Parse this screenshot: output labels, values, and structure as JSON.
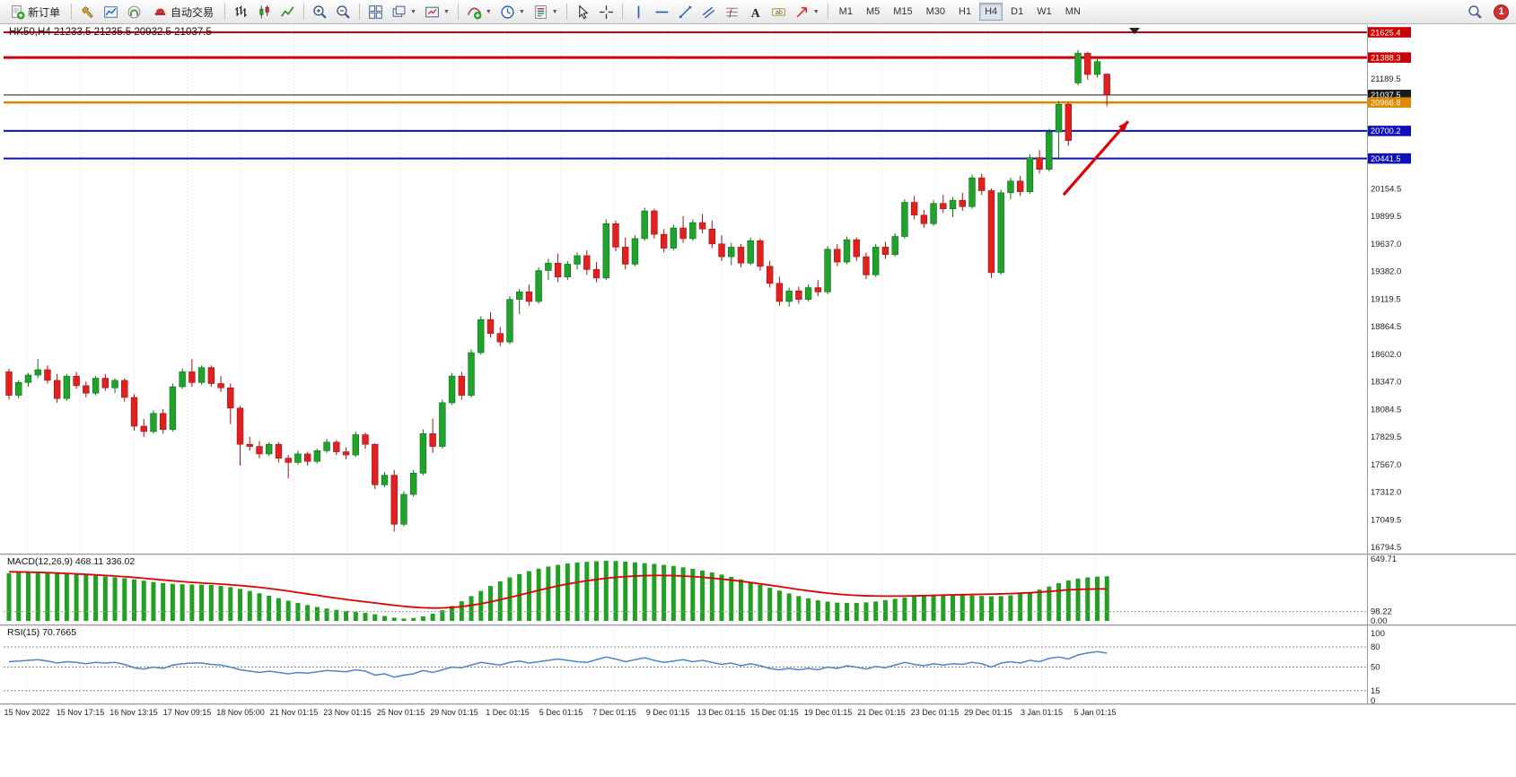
{
  "toolbar": {
    "buttons": [
      {
        "name": "new-order-button",
        "type": "labeled",
        "icon": "doc-plus",
        "label": "新订单"
      },
      {
        "type": "sep"
      },
      {
        "name": "hammer-tool-button",
        "type": "icon",
        "icon": "hammer"
      },
      {
        "name": "charts-window-button",
        "type": "icon",
        "icon": "chart-window"
      },
      {
        "name": "headphones-button",
        "type": "icon",
        "icon": "headphones"
      },
      {
        "name": "auto-trading-button",
        "type": "labeled",
        "icon": "autotrade",
        "label": "自动交易"
      },
      {
        "type": "sep"
      },
      {
        "name": "bar-chart-button",
        "type": "icon",
        "icon": "bar-chart"
      },
      {
        "name": "candle-chart-button",
        "type": "icon",
        "icon": "candle-chart"
      },
      {
        "name": "line-chart-button",
        "type": "icon",
        "icon": "line-chart"
      },
      {
        "type": "sep"
      },
      {
        "name": "zoom-in-button",
        "type": "icon",
        "icon": "zoom-in"
      },
      {
        "name": "zoom-out-button",
        "type": "icon",
        "icon": "zoom-out"
      },
      {
        "type": "sep"
      },
      {
        "name": "tile-windows-button",
        "type": "icon",
        "icon": "tile-windows"
      },
      {
        "name": "cascade-windows-button",
        "type": "icon",
        "icon": "cascade",
        "dropdown": true
      },
      {
        "name": "track-chart-button",
        "type": "icon",
        "icon": "track",
        "dropdown": true
      },
      {
        "type": "sep"
      },
      {
        "name": "indicators-button",
        "type": "icon",
        "icon": "indicator-plus",
        "dropdown": true
      },
      {
        "name": "periods-button",
        "type": "icon",
        "icon": "clock",
        "dropdown": true
      },
      {
        "name": "templates-button",
        "type": "icon",
        "icon": "template",
        "dropdown": true
      },
      {
        "type": "sep"
      },
      {
        "name": "cursor-button",
        "type": "icon",
        "icon": "cursor"
      },
      {
        "name": "crosshair-button",
        "type": "icon",
        "icon": "crosshair"
      },
      {
        "type": "sep"
      },
      {
        "name": "vertical-line-button",
        "type": "icon",
        "icon": "vline"
      },
      {
        "name": "horizontal-line-button",
        "type": "icon",
        "icon": "hline"
      },
      {
        "name": "trendline-button",
        "type": "icon",
        "icon": "trendline"
      },
      {
        "name": "channel-button",
        "type": "icon",
        "icon": "channel"
      },
      {
        "name": "fibonacci-button",
        "type": "icon",
        "icon": "fibonacci"
      },
      {
        "name": "text-button",
        "type": "icon",
        "icon": "text"
      },
      {
        "name": "label-button",
        "type": "icon",
        "icon": "label"
      },
      {
        "name": "arrows-button",
        "type": "icon",
        "icon": "arrows",
        "dropdown": true
      },
      {
        "type": "sep"
      }
    ],
    "timeframes": [
      {
        "label": "M1",
        "active": false
      },
      {
        "label": "M5",
        "active": false
      },
      {
        "label": "M15",
        "active": false
      },
      {
        "label": "M30",
        "active": false
      },
      {
        "label": "H1",
        "active": false
      },
      {
        "label": "H4",
        "active": true
      },
      {
        "label": "D1",
        "active": false
      },
      {
        "label": "W1",
        "active": false
      },
      {
        "label": "MN",
        "active": false
      }
    ],
    "badge": "1"
  },
  "chart_data": {
    "type": "candlestick",
    "symbol": "HK50",
    "timeframe": "H4",
    "title_line": "HK50,H4 21233.5 21235.5 20932.5 21037.5",
    "current_ohlc": {
      "open": 21233.5,
      "high": 21235.5,
      "low": 20932.5,
      "close": 21037.5
    },
    "colors": {
      "bull": "#1fa32a",
      "bull_edge": "#0d6e1d",
      "bear": "#e32020",
      "bear_edge": "#9e1414",
      "macd_hist": "#22a022",
      "macd_signal": "#e00000",
      "rsi_line": "#4a86c8",
      "grid": "#d4d4d4"
    },
    "price_ticks": [
      21189.5,
      20154.5,
      19899.5,
      19637.0,
      19382.0,
      19119.5,
      18864.5,
      18602.0,
      18347.0,
      18084.5,
      17829.5,
      17567.0,
      17312.0,
      17049.5,
      16794.5
    ],
    "hlines": [
      {
        "price": 21625.4,
        "color": "#cc0000",
        "width": 2
      },
      {
        "price": 21388.3,
        "color": "#cc0000",
        "width": 3
      },
      {
        "price": 21037.5,
        "color": "#1a1a1a",
        "width": 1
      },
      {
        "price": 20966.8,
        "color": "#e08900",
        "width": 2.5
      },
      {
        "price": 20700.2,
        "color": "#0f0fbb",
        "width": 2
      },
      {
        "price": 20441.5,
        "color": "#0f0fbb",
        "width": 2
      }
    ],
    "arrow": {
      "from_index": 109.5,
      "from_price": 20100,
      "to_index": 116.2,
      "to_price": 20790,
      "color": "#dd0000"
    },
    "time_labels": [
      "15 Nov 2022",
      "15 Nov 17:15",
      "16 Nov 13:15",
      "17 Nov 09:15",
      "18 Nov 05:00",
      "21 Nov 01:15",
      "23 Nov 01:15",
      "25 Nov 01:15",
      "29 Nov 01:15",
      "1 Dec 01:15",
      "5 Dec 01:15",
      "7 Dec 01:15",
      "9 Dec 01:15",
      "13 Dec 01:15",
      "15 Dec 01:15",
      "19 Dec 01:15",
      "21 Dec 01:15",
      "23 Dec 01:15",
      "29 Dec 01:15",
      "3 Jan 01:15",
      "5 Jan 01:15"
    ],
    "candles": [
      [
        18440,
        18470,
        18180,
        18220
      ],
      [
        18220,
        18360,
        18190,
        18340
      ],
      [
        18340,
        18430,
        18300,
        18410
      ],
      [
        18410,
        18560,
        18380,
        18460
      ],
      [
        18460,
        18500,
        18330,
        18360
      ],
      [
        18360,
        18420,
        18150,
        18190
      ],
      [
        18190,
        18420,
        18170,
        18400
      ],
      [
        18400,
        18440,
        18280,
        18310
      ],
      [
        18310,
        18350,
        18200,
        18240
      ],
      [
        18240,
        18400,
        18220,
        18380
      ],
      [
        18380,
        18420,
        18260,
        18290
      ],
      [
        18290,
        18380,
        18240,
        18360
      ],
      [
        18360,
        18380,
        18160,
        18200
      ],
      [
        18200,
        18230,
        17890,
        17930
      ],
      [
        17930,
        18000,
        17830,
        17880
      ],
      [
        17880,
        18080,
        17860,
        18050
      ],
      [
        18050,
        18090,
        17860,
        17900
      ],
      [
        17900,
        18330,
        17880,
        18300
      ],
      [
        18300,
        18470,
        18280,
        18440
      ],
      [
        18440,
        18560,
        18300,
        18340
      ],
      [
        18340,
        18500,
        18320,
        18480
      ],
      [
        18480,
        18500,
        18300,
        18330
      ],
      [
        18330,
        18400,
        18250,
        18290
      ],
      [
        18290,
        18330,
        17950,
        18100
      ],
      [
        18100,
        18120,
        17560,
        17760
      ],
      [
        17760,
        17830,
        17700,
        17740
      ],
      [
        17740,
        17790,
        17630,
        17670
      ],
      [
        17670,
        17780,
        17650,
        17760
      ],
      [
        17760,
        17780,
        17590,
        17630
      ],
      [
        17630,
        17660,
        17440,
        17590
      ],
      [
        17590,
        17700,
        17570,
        17670
      ],
      [
        17670,
        17690,
        17560,
        17600
      ],
      [
        17600,
        17720,
        17580,
        17700
      ],
      [
        17700,
        17810,
        17680,
        17780
      ],
      [
        17780,
        17800,
        17660,
        17690
      ],
      [
        17690,
        17730,
        17620,
        17660
      ],
      [
        17660,
        17880,
        17640,
        17850
      ],
      [
        17850,
        17870,
        17720,
        17760
      ],
      [
        17760,
        17770,
        17340,
        17380
      ],
      [
        17380,
        17500,
        17360,
        17470
      ],
      [
        17470,
        17520,
        16940,
        17010
      ],
      [
        17010,
        17320,
        16990,
        17290
      ],
      [
        17290,
        17520,
        17270,
        17490
      ],
      [
        17490,
        17900,
        17470,
        17860
      ],
      [
        17860,
        18000,
        17680,
        17740
      ],
      [
        17740,
        18180,
        17720,
        18150
      ],
      [
        18150,
        18430,
        18130,
        18400
      ],
      [
        18400,
        18440,
        18180,
        18220
      ],
      [
        18220,
        18650,
        18200,
        18620
      ],
      [
        18620,
        18960,
        18600,
        18930
      ],
      [
        18930,
        19000,
        18760,
        18800
      ],
      [
        18800,
        18860,
        18680,
        18720
      ],
      [
        18720,
        19150,
        18700,
        19120
      ],
      [
        19120,
        19220,
        18980,
        19190
      ],
      [
        19190,
        19260,
        19060,
        19100
      ],
      [
        19100,
        19420,
        19080,
        19390
      ],
      [
        19390,
        19500,
        19300,
        19460
      ],
      [
        19460,
        19550,
        19280,
        19330
      ],
      [
        19330,
        19480,
        19300,
        19450
      ],
      [
        19450,
        19560,
        19400,
        19530
      ],
      [
        19530,
        19580,
        19350,
        19400
      ],
      [
        19400,
        19470,
        19280,
        19320
      ],
      [
        19320,
        19870,
        19300,
        19830
      ],
      [
        19830,
        19860,
        19570,
        19610
      ],
      [
        19610,
        19700,
        19400,
        19450
      ],
      [
        19450,
        19720,
        19430,
        19690
      ],
      [
        19690,
        19980,
        19670,
        19950
      ],
      [
        19950,
        19970,
        19690,
        19730
      ],
      [
        19730,
        19780,
        19560,
        19600
      ],
      [
        19600,
        19820,
        19580,
        19790
      ],
      [
        19790,
        19900,
        19650,
        19690
      ],
      [
        19690,
        19870,
        19670,
        19840
      ],
      [
        19840,
        19920,
        19740,
        19780
      ],
      [
        19780,
        19860,
        19600,
        19640
      ],
      [
        19640,
        19720,
        19480,
        19520
      ],
      [
        19520,
        19650,
        19440,
        19610
      ],
      [
        19610,
        19640,
        19420,
        19460
      ],
      [
        19460,
        19700,
        19440,
        19670
      ],
      [
        19670,
        19690,
        19390,
        19430
      ],
      [
        19430,
        19480,
        19230,
        19270
      ],
      [
        19270,
        19330,
        19060,
        19100
      ],
      [
        19100,
        19230,
        19050,
        19200
      ],
      [
        19200,
        19240,
        19080,
        19120
      ],
      [
        19120,
        19260,
        19100,
        19230
      ],
      [
        19230,
        19300,
        19150,
        19190
      ],
      [
        19190,
        19620,
        19170,
        19590
      ],
      [
        19590,
        19640,
        19430,
        19470
      ],
      [
        19470,
        19710,
        19450,
        19680
      ],
      [
        19680,
        19700,
        19480,
        19520
      ],
      [
        19520,
        19560,
        19310,
        19350
      ],
      [
        19350,
        19640,
        19330,
        19610
      ],
      [
        19610,
        19660,
        19500,
        19540
      ],
      [
        19540,
        19740,
        19520,
        19710
      ],
      [
        19710,
        20060,
        19690,
        20030
      ],
      [
        20030,
        20090,
        19870,
        19910
      ],
      [
        19910,
        19960,
        19790,
        19830
      ],
      [
        19830,
        20050,
        19810,
        20020
      ],
      [
        20020,
        20100,
        19930,
        19970
      ],
      [
        19970,
        20080,
        19890,
        20050
      ],
      [
        20050,
        20120,
        19950,
        19990
      ],
      [
        19990,
        20290,
        19970,
        20260
      ],
      [
        20260,
        20300,
        20100,
        20140
      ],
      [
        20140,
        20160,
        19320,
        19370
      ],
      [
        19370,
        20150,
        19350,
        20120
      ],
      [
        20120,
        20260,
        20060,
        20230
      ],
      [
        20230,
        20280,
        20090,
        20130
      ],
      [
        20130,
        20480,
        20110,
        20450
      ],
      [
        20450,
        20520,
        20300,
        20340
      ],
      [
        20340,
        20720,
        20320,
        20690
      ],
      [
        20690,
        20980,
        20430,
        20950
      ],
      [
        20950,
        20970,
        20560,
        20610
      ],
      [
        21150,
        21460,
        21130,
        21430
      ],
      [
        21430,
        21440,
        21180,
        21230
      ],
      [
        21230,
        21380,
        21200,
        21350
      ],
      [
        21233.5,
        21235.5,
        20932.5,
        21037.5
      ]
    ],
    "macd": {
      "label": "MACD(12,26,9) 468.11 336.02",
      "max": 649.71,
      "level": 98.22,
      "axis_labels": {
        "max": "649.71",
        "level": "98.22",
        "zero": "0.00"
      },
      "histogram": [
        500,
        508,
        512,
        510,
        505,
        498,
        492,
        486,
        480,
        474,
        466,
        458,
        448,
        436,
        422,
        408,
        396,
        388,
        384,
        382,
        380,
        376,
        368,
        354,
        336,
        314,
        290,
        264,
        238,
        212,
        188,
        166,
        146,
        130,
        116,
        104,
        94,
        84,
        70,
        52,
        34,
        24,
        30,
        48,
        76,
        112,
        156,
        206,
        260,
        314,
        366,
        414,
        456,
        492,
        522,
        548,
        570,
        588,
        602,
        612,
        620,
        626,
        630,
        628,
        622,
        614,
        606,
        598,
        588,
        576,
        562,
        546,
        528,
        508,
        486,
        462,
        436,
        408,
        378,
        348,
        318,
        288,
        260,
        236,
        216,
        202,
        192,
        188,
        188,
        194,
        204,
        218,
        232,
        246,
        258,
        268,
        274,
        276,
        274,
        270,
        266,
        262,
        258,
        260,
        268,
        282,
        302,
        328,
        360,
        396,
        424,
        444,
        456,
        464,
        468.11
      ],
      "signal": [
        515,
        514,
        512,
        509,
        506,
        502,
        498,
        493,
        488,
        483,
        477,
        471,
        464,
        456,
        447,
        438,
        429,
        420,
        412,
        405,
        398,
        392,
        386,
        379,
        371,
        362,
        352,
        340,
        327,
        313,
        298,
        283,
        268,
        253,
        239,
        225,
        212,
        200,
        188,
        176,
        164,
        153,
        144,
        138,
        135,
        136,
        141,
        150,
        163,
        180,
        200,
        222,
        246,
        271,
        296,
        321,
        345,
        367,
        387,
        405,
        421,
        435,
        447,
        457,
        465,
        471,
        475,
        477,
        477,
        475,
        471,
        465,
        458,
        449,
        439,
        428,
        416,
        403,
        389,
        375,
        360,
        345,
        330,
        316,
        303,
        291,
        281,
        273,
        267,
        263,
        261,
        260,
        260,
        261,
        263,
        265,
        268,
        271,
        273,
        275,
        277,
        279,
        281,
        283,
        286,
        290,
        295,
        301,
        309,
        318,
        326,
        330,
        333,
        335,
        336.02
      ]
    },
    "rsi": {
      "label": "RSI(15) 70.7665",
      "levels": [
        80,
        50,
        15
      ],
      "axis_labels": [
        [
          100,
          "100"
        ],
        [
          80,
          "80"
        ],
        [
          50,
          "50"
        ],
        [
          15,
          "15"
        ],
        [
          0,
          "0"
        ]
      ],
      "values": [
        58,
        59,
        60,
        61,
        59,
        56,
        58,
        57,
        55,
        57,
        56,
        57,
        54,
        49,
        47,
        50,
        48,
        53,
        55,
        56,
        56,
        54,
        53,
        50,
        46,
        44,
        42,
        44,
        42,
        40,
        42,
        41,
        43,
        45,
        44,
        43,
        46,
        44,
        38,
        40,
        35,
        38,
        40,
        45,
        42,
        46,
        50,
        49,
        53,
        57,
        55,
        53,
        57,
        59,
        56,
        58,
        60,
        62,
        60,
        58,
        57,
        61,
        65,
        62,
        58,
        61,
        64,
        60,
        57,
        59,
        61,
        58,
        60,
        57,
        54,
        56,
        52,
        55,
        52,
        48,
        46,
        48,
        46,
        48,
        46,
        50,
        48,
        52,
        50,
        47,
        51,
        49,
        53,
        57,
        54,
        52,
        55,
        53,
        55,
        54,
        57,
        55,
        50,
        56,
        58,
        56,
        60,
        58,
        63,
        65,
        62,
        68,
        71,
        73,
        70.77
      ]
    }
  }
}
